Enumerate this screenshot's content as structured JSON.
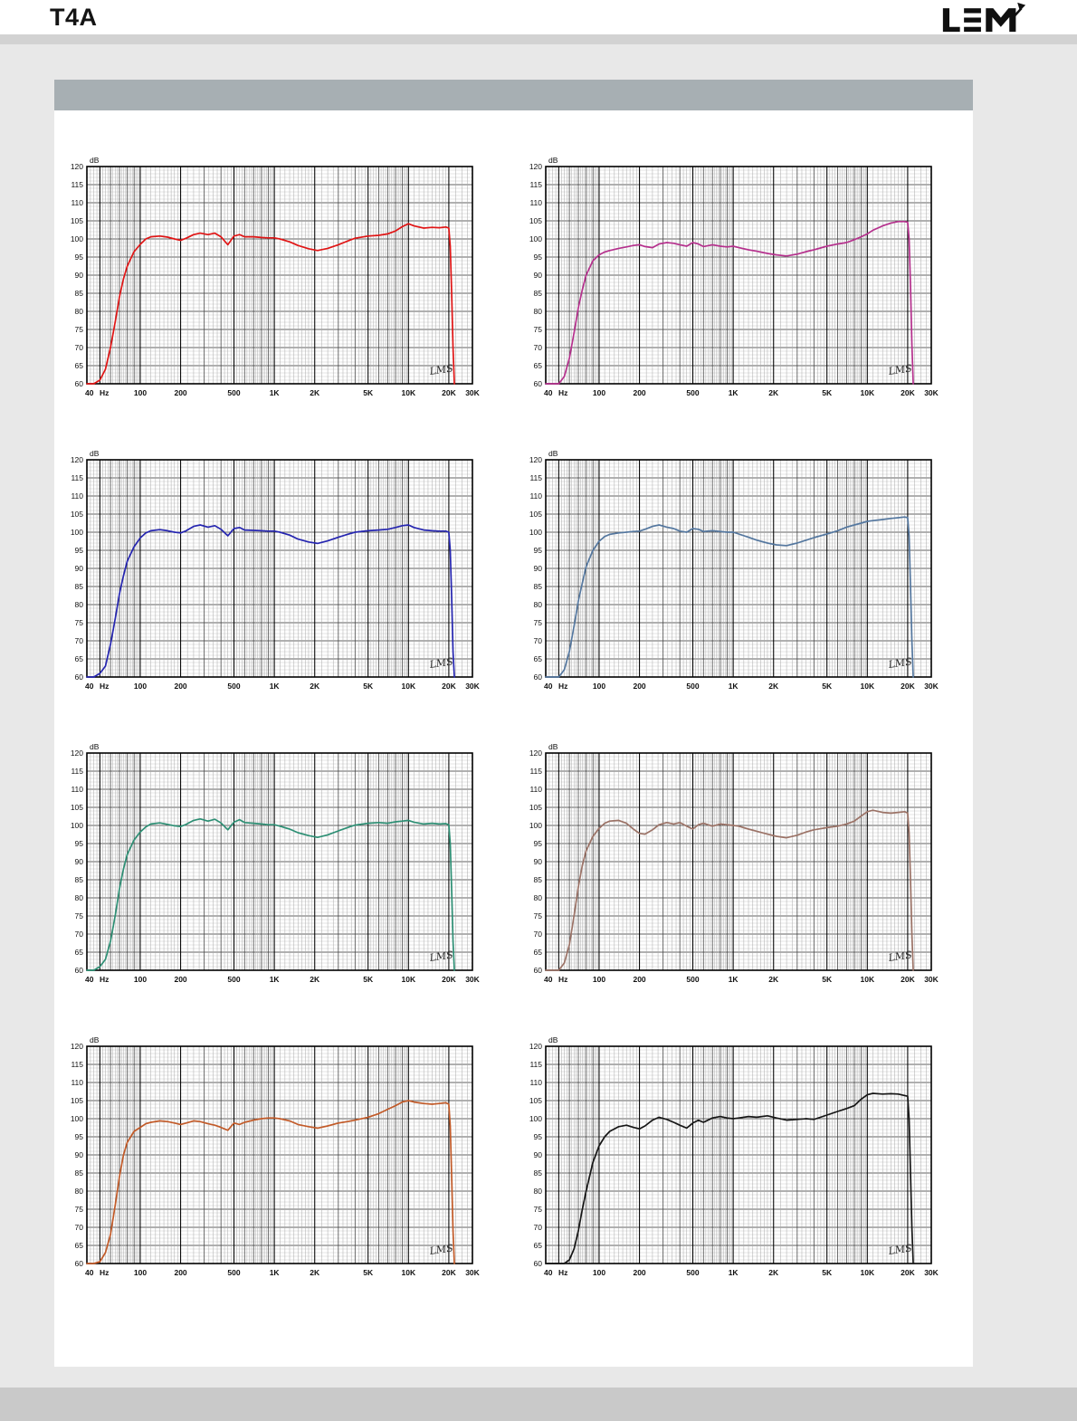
{
  "page": {
    "title": "T4A",
    "logo": "LEM"
  },
  "chart_data": {
    "type": "line",
    "title": "",
    "ylabel": "dB",
    "x_unit": "Hz",
    "ylim": [
      60,
      120
    ],
    "ytick_step": 5,
    "xlim_hz": [
      40,
      30000
    ],
    "x_scale": "log",
    "grid": "on",
    "watermark": "LMS",
    "xtick_hz": [
      40,
      100,
      200,
      500,
      1000,
      2000,
      5000,
      10000,
      20000,
      30000
    ],
    "xtick_labels": [
      "40",
      "100",
      "200",
      "500",
      "1K",
      "2K",
      "5K",
      "10K",
      "20K",
      "30K"
    ],
    "ytick_labels": [
      120,
      115,
      110,
      105,
      100,
      95,
      90,
      85,
      80,
      75,
      70,
      65,
      60
    ],
    "x_hz": [
      40,
      45,
      50,
      55,
      60,
      65,
      70,
      75,
      80,
      90,
      100,
      110,
      120,
      140,
      160,
      180,
      200,
      220,
      250,
      280,
      320,
      360,
      400,
      450,
      500,
      550,
      600,
      700,
      800,
      900,
      1000,
      1100,
      1300,
      1500,
      1800,
      2100,
      2500,
      3000,
      3500,
      4000,
      5000,
      6000,
      7000,
      8000,
      9000,
      10000,
      11000,
      13000,
      15000,
      17000,
      19000,
      20000,
      20500,
      21000,
      21500,
      22000
    ],
    "series": [
      {
        "name": "response-red",
        "color": "#e01515",
        "values": [
          60,
          60,
          61,
          64,
          70,
          77,
          84,
          89,
          92.5,
          96.5,
          98.5,
          100,
          100.6,
          100.8,
          100.5,
          100,
          99.6,
          100.2,
          101.2,
          101.6,
          101.2,
          101.6,
          100.6,
          98.4,
          100.8,
          101.2,
          100.6,
          100.6,
          100.4,
          100.3,
          100.3,
          100,
          99.2,
          98.2,
          97.3,
          96.8,
          97.4,
          98.4,
          99.4,
          100.2,
          100.8,
          101,
          101.4,
          102.2,
          103.4,
          104.2,
          103.6,
          103,
          103.2,
          103.1,
          103.3,
          103,
          98,
          85,
          70,
          60
        ]
      },
      {
        "name": "response-magenta",
        "color": "#b5308d",
        "values": [
          60,
          60,
          60,
          62,
          67,
          74,
          81,
          86,
          90,
          94,
          95.6,
          96.4,
          96.8,
          97.4,
          97.8,
          98.2,
          98.4,
          97.9,
          97.6,
          98.6,
          99,
          98.8,
          98.4,
          98,
          99,
          98.6,
          97.9,
          98.4,
          98,
          97.8,
          98,
          97.6,
          97,
          96.6,
          96,
          95.6,
          95.3,
          95.8,
          96.5,
          97,
          98,
          98.6,
          99,
          99.8,
          100.6,
          101.4,
          102.4,
          103.6,
          104.4,
          104.8,
          104.8,
          104.6,
          100,
          87,
          71,
          60
        ]
      },
      {
        "name": "response-blue",
        "color": "#2525b0",
        "values": [
          60,
          60,
          61,
          63,
          69,
          76,
          83,
          88,
          92,
          96,
          98.4,
          99.8,
          100.4,
          100.7,
          100.4,
          100,
          99.8,
          100.4,
          101.6,
          102,
          101.4,
          101.8,
          100.8,
          99,
          101,
          101.3,
          100.6,
          100.5,
          100.4,
          100.3,
          100.3,
          100,
          99.2,
          98.1,
          97.3,
          96.9,
          97.6,
          98.6,
          99.4,
          100,
          100.4,
          100.6,
          100.8,
          101.3,
          101.8,
          102,
          101.3,
          100.6,
          100.4,
          100.3,
          100.3,
          100,
          95,
          82,
          67,
          60
        ]
      },
      {
        "name": "response-steelblue",
        "color": "#54779f",
        "values": [
          60,
          60,
          60,
          62,
          67,
          74,
          81,
          86,
          90.5,
          95,
          97.5,
          98.8,
          99.4,
          99.8,
          100,
          100.2,
          100.3,
          100.8,
          101.6,
          102,
          101.4,
          101,
          100.3,
          100,
          101,
          100.8,
          100.2,
          100.4,
          100.2,
          100,
          100,
          99.5,
          98.6,
          97.8,
          97,
          96.5,
          96.3,
          97,
          97.8,
          98.5,
          99.5,
          100.4,
          101.4,
          102,
          102.5,
          103,
          103.2,
          103.5,
          103.8,
          104,
          104.2,
          104,
          99,
          85,
          70,
          60
        ]
      },
      {
        "name": "response-teal",
        "color": "#2d8f74",
        "values": [
          60,
          60,
          61,
          63,
          68,
          75,
          82.5,
          88,
          92,
          96,
          98.2,
          99.6,
          100.4,
          100.7,
          100.3,
          99.9,
          99.7,
          100.3,
          101.4,
          101.8,
          101.2,
          101.7,
          100.7,
          98.8,
          100.9,
          101.6,
          100.8,
          100.6,
          100.4,
          100.2,
          100.2,
          99.8,
          99,
          98,
          97.2,
          96.7,
          97.4,
          98.5,
          99.4,
          100.1,
          100.6,
          100.8,
          100.6,
          101,
          101.2,
          101.4,
          100.9,
          100.4,
          100.6,
          100.4,
          100.5,
          100.2,
          95,
          82,
          68,
          60
        ]
      },
      {
        "name": "response-brown",
        "color": "#9b7266",
        "values": [
          60,
          60,
          60,
          62,
          67,
          75,
          83,
          89,
          93,
          97,
          99.2,
          100.6,
          101.2,
          101.4,
          100.6,
          99,
          97.8,
          97.6,
          98.8,
          100.2,
          100.8,
          100.4,
          100.8,
          99.8,
          99,
          100.2,
          100.6,
          99.8,
          100.4,
          100.2,
          100,
          99.8,
          99,
          98.4,
          97.6,
          97,
          96.6,
          97.3,
          98.2,
          98.8,
          99.4,
          99.8,
          100.4,
          101.2,
          102.6,
          103.8,
          104.2,
          103.6,
          103.4,
          103.6,
          103.8,
          103.4,
          98,
          85,
          70,
          60
        ]
      },
      {
        "name": "response-orange",
        "color": "#c25a28",
        "values": [
          60,
          60,
          60.5,
          63,
          68,
          76,
          84,
          90,
          93.5,
          96.5,
          97.6,
          98.6,
          99,
          99.4,
          99.2,
          98.8,
          98.4,
          98.8,
          99.4,
          99.2,
          98.6,
          98.2,
          97.6,
          96.8,
          98.8,
          98.4,
          99,
          99.6,
          100,
          100.2,
          100.2,
          100,
          99.4,
          98.4,
          97.8,
          97.4,
          98,
          98.8,
          99.2,
          99.6,
          100.4,
          101.4,
          102.6,
          103.6,
          104.6,
          105,
          104.6,
          104.2,
          104,
          104.2,
          104.4,
          104,
          98,
          84,
          69,
          60
        ]
      },
      {
        "name": "response-black",
        "color": "#161616",
        "values": [
          60,
          60,
          60,
          60,
          61,
          64,
          69,
          75,
          80,
          88,
          92.5,
          95,
          96.5,
          97.8,
          98.2,
          97.6,
          97.2,
          98,
          99.6,
          100.4,
          99.8,
          99,
          98.2,
          97.4,
          98.8,
          99.6,
          99,
          100.2,
          100.6,
          100.2,
          100,
          100.2,
          100.6,
          100.4,
          100.8,
          100.2,
          99.6,
          99.8,
          100,
          99.8,
          101,
          102,
          102.8,
          103.6,
          105.4,
          106.6,
          107,
          106.8,
          106.9,
          106.8,
          106.4,
          106.2,
          100,
          85,
          70,
          60
        ]
      }
    ]
  }
}
